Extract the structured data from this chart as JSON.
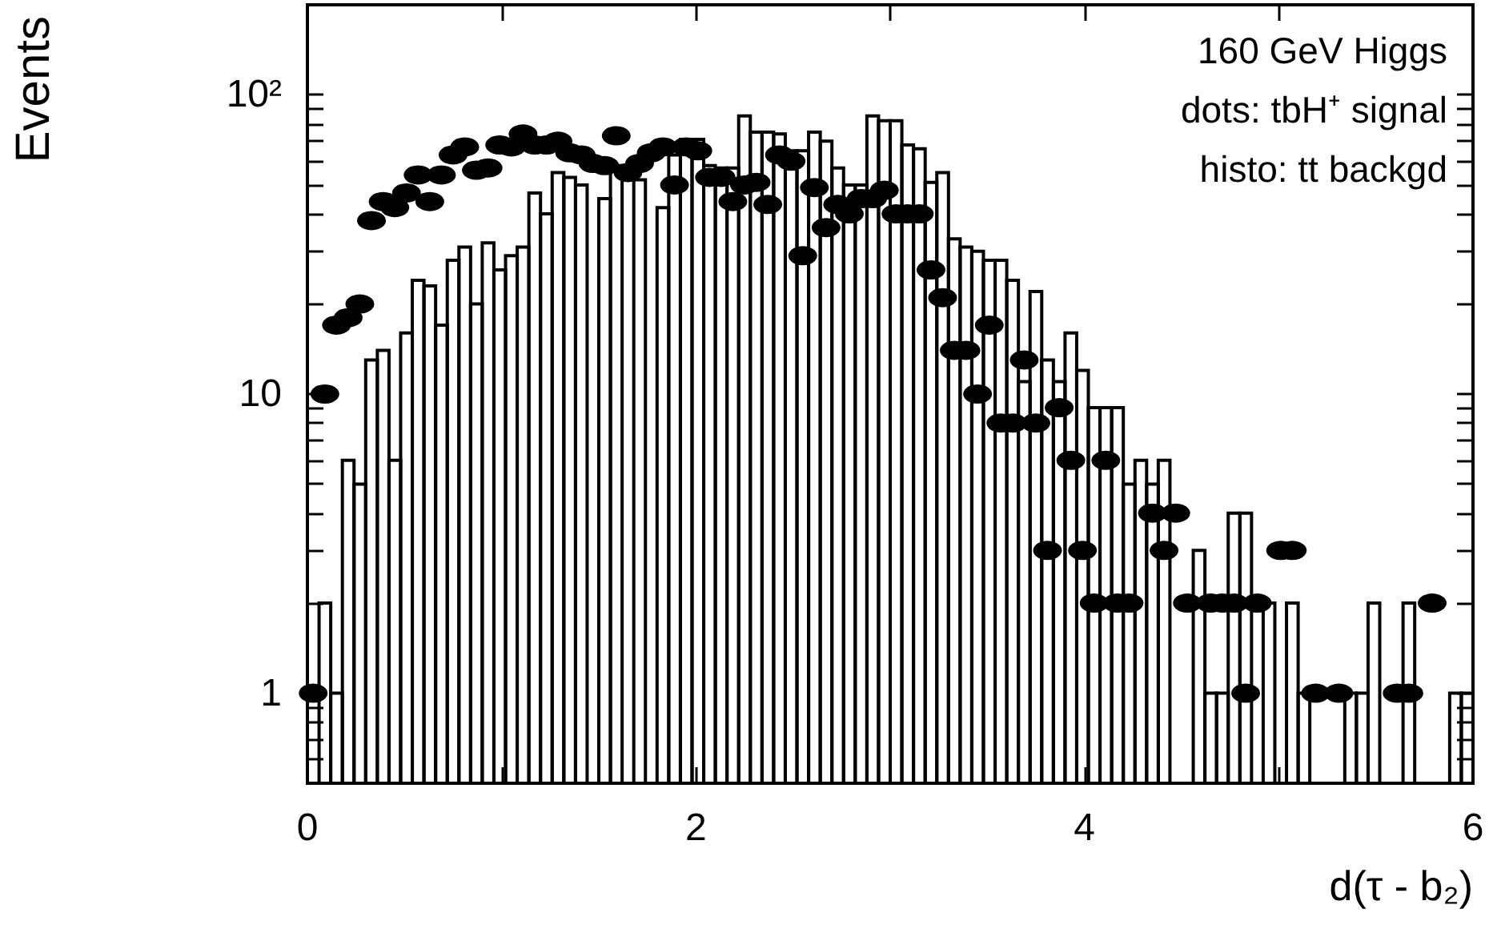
{
  "chart_data": {
    "type": "histogram",
    "xlabel": "d(τ - b₂)",
    "ylabel": "Events",
    "annotations": [
      "160 GeV Higgs",
      "dots: tbH⁺ signal",
      "histo: tt backgd"
    ],
    "bins": [
      0,
      0.06,
      0.12,
      0.18,
      0.24,
      0.3,
      0.36,
      0.42,
      0.48,
      0.54,
      0.6,
      0.66,
      0.72,
      0.78,
      0.84,
      0.9,
      0.96,
      1.02,
      1.08,
      1.14,
      1.2,
      1.26,
      1.32,
      1.38,
      1.44,
      1.5,
      1.56,
      1.62,
      1.68,
      1.74,
      1.8,
      1.86,
      1.92,
      1.98,
      2.04,
      2.1,
      2.16,
      2.22,
      2.28,
      2.34,
      2.4,
      2.46,
      2.52,
      2.58,
      2.64,
      2.7,
      2.76,
      2.82,
      2.88,
      2.94,
      3,
      3.06,
      3.12,
      3.18,
      3.24,
      3.3,
      3.36,
      3.42,
      3.48,
      3.54,
      3.6,
      3.66,
      3.72,
      3.78,
      3.84,
      3.9,
      3.96,
      4.02,
      4.08,
      4.14,
      4.2,
      4.26,
      4.32,
      4.38,
      4.44,
      4.5,
      4.56,
      4.62,
      4.68,
      4.74,
      4.8,
      4.86,
      4.92,
      4.98,
      5.04,
      5.1,
      5.16,
      5.22,
      5.28,
      5.34,
      5.4,
      5.46,
      5.52,
      5.58,
      5.64,
      5.7,
      5.76,
      5.82,
      5.88,
      5.94,
      6
    ],
    "series": [
      {
        "color": "#000000",
        "values": [
          null,
          2,
          1,
          6,
          5,
          13,
          14,
          6,
          16,
          24,
          23,
          17,
          28,
          31,
          20,
          32,
          26,
          29,
          31,
          47,
          40,
          55,
          53,
          50,
          null,
          45,
          58,
          null,
          52,
          null,
          42,
          63,
          71,
          71,
          58,
          57,
          57,
          85,
          75,
          75,
          74,
          65,
          65,
          75,
          70,
          57,
          50,
          50,
          85,
          82,
          82,
          68,
          66,
          51,
          55,
          33,
          31,
          30,
          28,
          28,
          24,
          11,
          22,
          13,
          11,
          16,
          12,
          9,
          9,
          9,
          5,
          6,
          5,
          6,
          null,
          null,
          3,
          1,
          1,
          4,
          4,
          null,
          2,
          null,
          2,
          1,
          null,
          null,
          null,
          1,
          1,
          2,
          null,
          null,
          2,
          null,
          null,
          null,
          1,
          1
        ]
      },
      {
        "type": "scatter",
        "color": "#000000",
        "x": [
          0.03,
          0.09,
          0.15,
          0.21,
          0.27,
          0.33,
          0.39,
          0.45,
          0.51,
          0.57,
          0.63,
          0.69,
          0.75,
          0.81,
          0.87,
          0.93,
          0.99,
          1.05,
          1.11,
          1.17,
          1.23,
          1.29,
          1.35,
          1.41,
          1.47,
          1.53,
          1.59,
          1.65,
          1.71,
          1.77,
          1.83,
          1.89,
          1.95,
          2.01,
          2.07,
          2.13,
          2.19,
          2.25,
          2.31,
          2.37,
          2.43,
          2.49,
          2.55,
          2.61,
          2.67,
          2.73,
          2.79,
          2.85,
          2.91,
          2.97,
          3.03,
          3.09,
          3.15,
          3.21,
          3.27,
          3.33,
          3.39,
          3.45,
          3.51,
          3.57,
          3.63,
          3.69,
          3.75,
          3.81,
          3.87,
          3.93,
          3.99,
          4.05,
          4.11,
          4.17,
          4.23,
          4.35,
          4.41,
          4.47,
          4.53,
          4.65,
          4.71,
          4.77,
          4.83,
          4.89,
          5.01,
          5.07,
          5.19,
          5.31,
          5.61,
          5.67,
          5.79
        ],
        "values": [
          1,
          10,
          17,
          18,
          20,
          38,
          44,
          42,
          47,
          54,
          44,
          54,
          63,
          67,
          56,
          57,
          68,
          67,
          74,
          68,
          68,
          70,
          64,
          63,
          59,
          58,
          73,
          55,
          59,
          64,
          67,
          50,
          67,
          65,
          53,
          53,
          44,
          50,
          51,
          43,
          63,
          60,
          29,
          49,
          36,
          43,
          40,
          45,
          45,
          48,
          40,
          40,
          40,
          26,
          21,
          14,
          14,
          10,
          17,
          8,
          8,
          13,
          8,
          3,
          9,
          6,
          3,
          2,
          6,
          2,
          2,
          4,
          3,
          4,
          2,
          2,
          2,
          2,
          1,
          2,
          3,
          3,
          1,
          1,
          1,
          1,
          2
        ]
      }
    ],
    "marker": "circle",
    "log": "y",
    "xlim": [
      0,
      6
    ],
    "xticks": [
      0,
      {
        "value": 1,
        "label": null
      },
      2,
      {
        "value": 3,
        "label": null
      },
      4,
      {
        "value": 5,
        "label": null
      },
      6
    ],
    "ylim": [
      0.5,
      200
    ],
    "yticks": [
      {
        "value": 0.6,
        "label": null
      },
      {
        "value": 0.7,
        "label": null
      },
      {
        "value": 0.8,
        "label": null
      },
      {
        "value": 0.9,
        "label": null
      },
      1,
      {
        "value": 2,
        "label": null
      },
      {
        "value": 3,
        "label": null
      },
      {
        "value": 4,
        "label": null
      },
      {
        "value": 5,
        "label": null
      },
      {
        "value": 6,
        "label": null
      },
      {
        "value": 7,
        "label": null
      },
      {
        "value": 8,
        "label": null
      },
      {
        "value": 9,
        "label": null
      },
      10,
      {
        "value": 20,
        "label": null
      },
      {
        "value": 30,
        "label": null
      },
      {
        "value": 40,
        "label": null
      },
      {
        "value": 50,
        "label": null
      },
      {
        "value": 60,
        "label": null
      },
      {
        "value": 70,
        "label": null
      },
      {
        "value": 80,
        "label": null
      },
      {
        "value": 90,
        "label": null
      },
      {
        "value": 100,
        "label": "10²"
      }
    ],
    "grid": false
  }
}
